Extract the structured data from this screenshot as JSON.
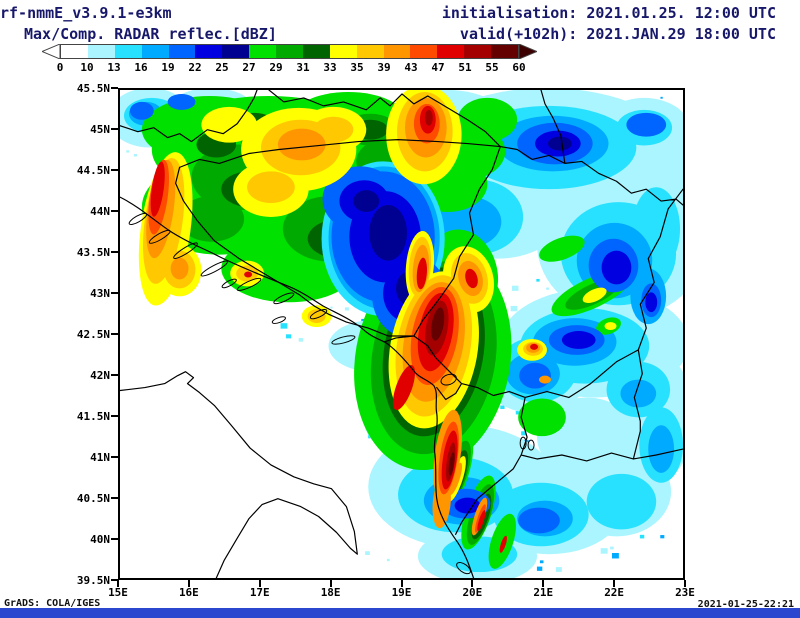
{
  "header": {
    "model_label": "rf-nmmE_v3.9.1-e3km",
    "init_label": "initialisation: 2021.01.25. 12:00 UTC",
    "product_label": "Max/Comp. RADAR reflec.[dBZ]",
    "valid_label": "valid(+102h): 2021.JAN.29 18:00 UTC"
  },
  "colorbar": {
    "unit": "dBZ",
    "tick_labels": [
      "0",
      "10",
      "13",
      "16",
      "19",
      "22",
      "25",
      "27",
      "29",
      "31",
      "33",
      "35",
      "39",
      "43",
      "47",
      "51",
      "55",
      "60"
    ],
    "segment_colors": [
      "#ffffff",
      "#aaf5ff",
      "#28e1ff",
      "#00aaff",
      "#0064ff",
      "#0000e1",
      "#000091",
      "#00e100",
      "#00aa00",
      "#006400",
      "#ffff00",
      "#ffc800",
      "#ff9600",
      "#ff4b00",
      "#e10000",
      "#a50000",
      "#640000"
    ],
    "left_arrow_color": "#ffffff",
    "right_arrow_color": "#3c0000"
  },
  "map": {
    "lat_labels": [
      "45.5N",
      "45N",
      "44.5N",
      "44N",
      "43.5N",
      "43N",
      "42.5N",
      "42N",
      "41.5N",
      "41N",
      "40.5N",
      "40N",
      "39.5N"
    ],
    "lon_labels": [
      "15E",
      "16E",
      "17E",
      "18E",
      "19E",
      "20E",
      "21E",
      "22E",
      "23E"
    ]
  },
  "footer": {
    "credit": "GrADS: COLA/IGES",
    "timestamp": "2021-01-25-22:21"
  }
}
